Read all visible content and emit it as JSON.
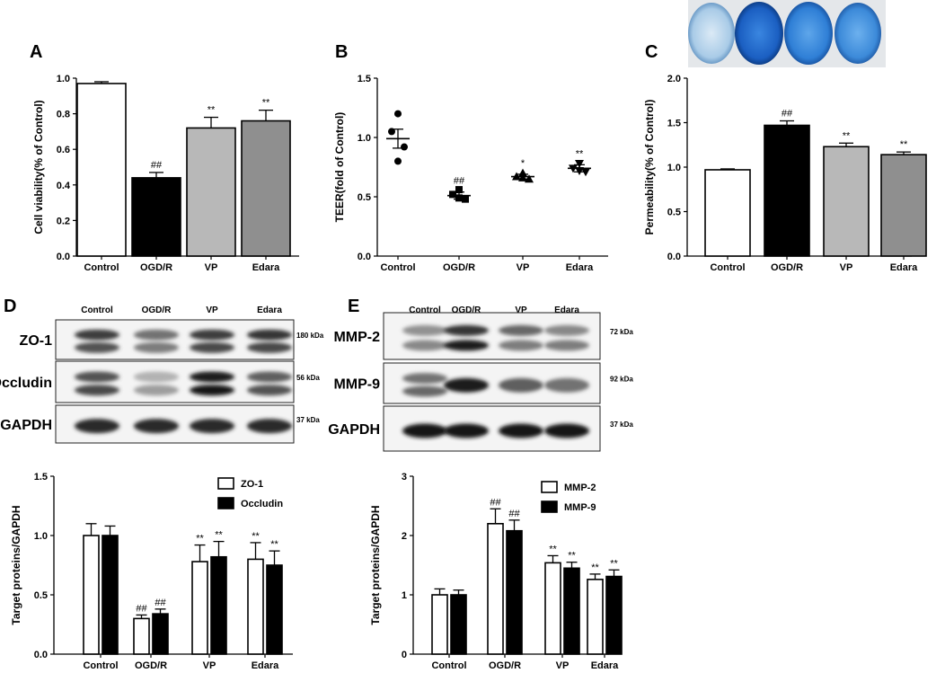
{
  "figure": {
    "panel_labels": {
      "A": "A",
      "B": "B",
      "C": "C",
      "D": "D",
      "E": "E"
    }
  },
  "colors": {
    "control": "#ffffff",
    "ogdr": "#000000",
    "vp": "#b8b8b8",
    "edara": "#8f8f8f",
    "well_dark": "#1c5fc0",
    "well_light": "#9fc6e8"
  },
  "chart_data": [
    {
      "id": "A",
      "type": "bar",
      "categories": [
        "Control",
        "OGD/R",
        "VP",
        "Edara"
      ],
      "values": [
        0.97,
        0.44,
        0.72,
        0.76
      ],
      "errors": [
        0.01,
        0.03,
        0.06,
        0.06
      ],
      "annotations": [
        "",
        "##",
        "**",
        "**"
      ],
      "xlabel": "",
      "ylabel": "Cell viability(% of Control)",
      "ylim": [
        0,
        1.0
      ],
      "yticks": [
        "0.0",
        "0.2",
        "0.4",
        "0.6",
        "0.8",
        "1.0"
      ],
      "grid": false
    },
    {
      "id": "B",
      "type": "scatter",
      "categories": [
        "Control",
        "OGD/R",
        "VP",
        "Edara"
      ],
      "points": [
        [
          1.2,
          1.05,
          0.92,
          0.8
        ],
        [
          0.56,
          0.52,
          0.48,
          0.49
        ],
        [
          0.7,
          0.67,
          0.65,
          0.66
        ],
        [
          0.78,
          0.74,
          0.71,
          0.72
        ]
      ],
      "means": [
        0.99,
        0.51,
        0.67,
        0.74
      ],
      "sem": [
        0.08,
        0.03,
        0.02,
        0.03
      ],
      "markers": [
        "circle",
        "square",
        "triangle",
        "triangle-down"
      ],
      "annotations": [
        "",
        "##",
        "*",
        "**"
      ],
      "xlabel": "",
      "ylabel": "TEER(fold of Control)",
      "ylim": [
        0,
        1.5
      ],
      "yticks": [
        "0.0",
        "0.5",
        "1.0",
        "1.5"
      ],
      "grid": false
    },
    {
      "id": "C",
      "type": "bar",
      "categories": [
        "Control",
        "OGD/R",
        "VP",
        "Edara"
      ],
      "values": [
        0.97,
        1.47,
        1.23,
        1.14
      ],
      "errors": [
        0.01,
        0.05,
        0.04,
        0.03
      ],
      "annotations": [
        "",
        "##",
        "**",
        "**"
      ],
      "xlabel": "",
      "ylabel": "Permeability(% of Control)",
      "ylim": [
        0,
        2.0
      ],
      "yticks": [
        "0.0",
        "0.5",
        "1.0",
        "1.5",
        "2.0"
      ],
      "grid": false
    },
    {
      "id": "D",
      "type": "bar",
      "categories": [
        "Control",
        "OGD/R",
        "VP",
        "Edara"
      ],
      "series": [
        {
          "name": "ZO-1",
          "color": "#ffffff",
          "values": [
            1.0,
            0.3,
            0.78,
            0.8
          ],
          "errors": [
            0.1,
            0.03,
            0.14,
            0.14
          ],
          "annotations": [
            "",
            "##",
            "**",
            "**"
          ]
        },
        {
          "name": "Occludin",
          "color": "#000000",
          "values": [
            1.0,
            0.34,
            0.82,
            0.75
          ],
          "errors": [
            0.08,
            0.04,
            0.13,
            0.12
          ],
          "annotations": [
            "",
            "##",
            "**",
            "**"
          ]
        }
      ],
      "legend": "top-right",
      "xlabel": "",
      "ylabel": "Target proteins/GAPDH",
      "ylim": [
        0,
        1.5
      ],
      "yticks": [
        "0.0",
        "0.5",
        "1.0",
        "1.5"
      ],
      "grid": false
    },
    {
      "id": "E",
      "type": "bar",
      "categories": [
        "Control",
        "OGD/R",
        "VP",
        "Edara"
      ],
      "series": [
        {
          "name": "MMP-2",
          "color": "#ffffff",
          "values": [
            1.0,
            2.2,
            1.54,
            1.26
          ],
          "errors": [
            0.1,
            0.25,
            0.12,
            0.09
          ],
          "annotations": [
            "",
            "##",
            "**",
            "**"
          ]
        },
        {
          "name": "MMP-9",
          "color": "#000000",
          "values": [
            1.0,
            2.08,
            1.45,
            1.31
          ],
          "errors": [
            0.08,
            0.18,
            0.1,
            0.11
          ],
          "annotations": [
            "",
            "##",
            "**",
            "**"
          ]
        }
      ],
      "legend": "top-right",
      "xlabel": "",
      "ylabel": "Target proteins/GAPDH",
      "ylim": [
        0,
        3
      ],
      "yticks": [
        "0",
        "1",
        "2",
        "3"
      ],
      "grid": false
    }
  ],
  "blots": {
    "D": {
      "lanes": [
        "Control",
        "OGD/R",
        "VP",
        "Edara"
      ],
      "rows": [
        {
          "label": "ZO-1",
          "kda": "180 kDa"
        },
        {
          "label": "Occludin",
          "kda": "56 kDa"
        },
        {
          "label": "GAPDH",
          "kda": "37 kDa"
        }
      ]
    },
    "E": {
      "lanes": [
        "Control",
        "OGD/R",
        "VP",
        "Edara"
      ],
      "rows": [
        {
          "label": "MMP-2",
          "kda": "72 kDa"
        },
        {
          "label": "MMP-9",
          "kda": "92 kDa"
        },
        {
          "label": "GAPDH",
          "kda": "37 kDa"
        }
      ]
    }
  }
}
